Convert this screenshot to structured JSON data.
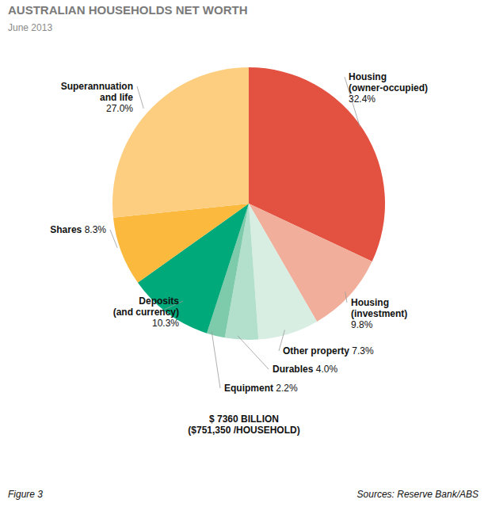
{
  "chart_data": {
    "type": "pie",
    "title": "AUSTRALIAN HOUSEHOLDS NET WORTH",
    "subtitle": "June 2013",
    "categories": [
      "Housing (owner-occupied)",
      "Housing (investment)",
      "Other property",
      "Durables",
      "Equipment",
      "Deposits (and currency)",
      "Shares",
      "Superannuation and life"
    ],
    "values": [
      32.4,
      9.8,
      7.3,
      4.0,
      2.2,
      10.3,
      8.3,
      27.0
    ],
    "value_labels": [
      "32.4%",
      "9.8%",
      "7.3%",
      "4.0%",
      "2.2%",
      "10.3%",
      "8.3%",
      "27.0%"
    ],
    "colors": [
      "#e35141",
      "#f1af9b",
      "#d8eee3",
      "#b3dfcd",
      "#7ecbab",
      "#00a97a",
      "#fbb93e",
      "#fdcd80"
    ],
    "data_labels": true,
    "annotations": [
      "$ 7360 BILLION",
      "($751,350 /HOUSEHOLD)"
    ],
    "caption": "Figure 3",
    "source": "Sources: Reserve Bank/ABS"
  }
}
